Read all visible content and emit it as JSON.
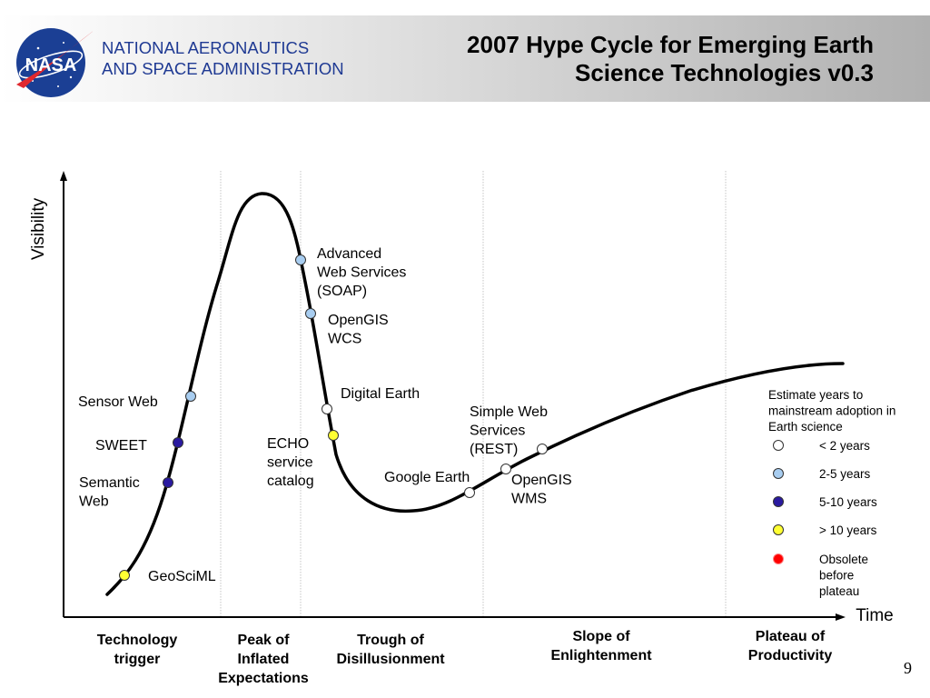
{
  "header": {
    "org_line1": "NATIONAL AERONAUTICS",
    "org_line2": "AND SPACE ADMINISTRATION",
    "logo_text": "NASA",
    "title_line1": "2007 Hype Cycle for Emerging Earth",
    "title_line2": "Science Technologies v0.3",
    "logo_icon": "nasa-meatball-logo"
  },
  "axes": {
    "y_label": "Visibility",
    "x_label": "Time"
  },
  "phases": [
    {
      "id": "technology-trigger",
      "lines": [
        "Technology",
        "trigger"
      ]
    },
    {
      "id": "peak",
      "lines": [
        "Peak of",
        "Inflated",
        "Expectations"
      ]
    },
    {
      "id": "trough",
      "lines": [
        "Trough of",
        "Disillusionment"
      ]
    },
    {
      "id": "slope",
      "lines": [
        "Slope of",
        "Enlightenment"
      ]
    },
    {
      "id": "plateau",
      "lines": [
        "Plateau of",
        "Productivity"
      ]
    }
  ],
  "technologies": [
    {
      "id": "geosciml",
      "lines": [
        "GeoSciML"
      ],
      "category": "gt10"
    },
    {
      "id": "semantic-web",
      "lines": [
        "Semantic",
        "Web"
      ],
      "category": "5to10"
    },
    {
      "id": "sweet",
      "lines": [
        "SWEET"
      ],
      "category": "5to10"
    },
    {
      "id": "sensor-web",
      "lines": [
        "Sensor Web"
      ],
      "category": "2to5"
    },
    {
      "id": "advanced-web-services",
      "lines": [
        "Advanced",
        "Web Services",
        "(SOAP)"
      ],
      "category": "2to5"
    },
    {
      "id": "opengis-wcs",
      "lines": [
        "OpenGIS",
        "WCS"
      ],
      "category": "2to5"
    },
    {
      "id": "digital-earth",
      "lines": [
        "Digital Earth"
      ],
      "category": "lt2"
    },
    {
      "id": "echo-service-catalog",
      "lines": [
        "ECHO",
        "service",
        "catalog"
      ],
      "category": "gt10"
    },
    {
      "id": "google-earth",
      "lines": [
        "Google Earth"
      ],
      "category": "lt2"
    },
    {
      "id": "opengis-wms",
      "lines": [
        "OpenGIS",
        "WMS"
      ],
      "category": "lt2"
    },
    {
      "id": "simple-web-services",
      "lines": [
        "Simple Web",
        "Services",
        "(REST)"
      ],
      "category": "lt2"
    }
  ],
  "legend": {
    "title_lines": [
      "Estimate years to",
      "mainstream adoption in",
      "Earth science"
    ],
    "items": [
      {
        "id": "lt2",
        "label_lines": [
          "< 2 years"
        ],
        "color": "#ffffff"
      },
      {
        "id": "2to5",
        "label_lines": [
          "2-5  years"
        ],
        "color": "#a8cdf0"
      },
      {
        "id": "5to10",
        "label_lines": [
          "5-10  years"
        ],
        "color": "#2a1aa0"
      },
      {
        "id": "gt10",
        "label_lines": [
          "> 10  years"
        ],
        "color": "#ffff33"
      },
      {
        "id": "obsolete",
        "label_lines": [
          "Obsolete",
          "before",
          "plateau"
        ],
        "color": "#ff0000"
      }
    ]
  },
  "page_number": "9"
}
